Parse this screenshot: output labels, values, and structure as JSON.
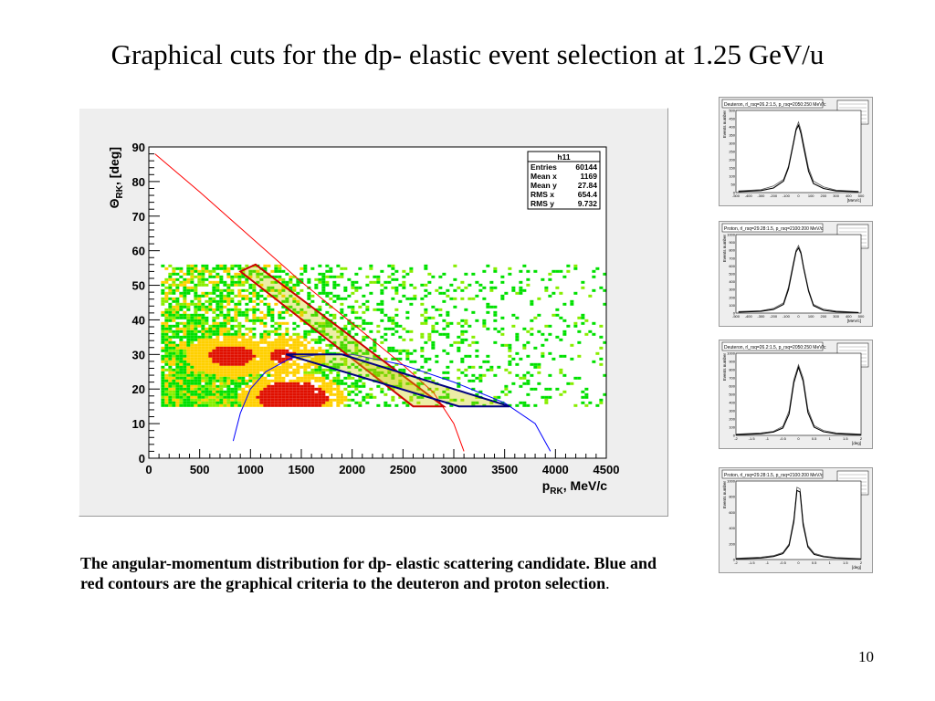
{
  "slide": {
    "title": "Graphical cuts for the dp- elastic event selection at 1.25 GeV/u",
    "caption": "The angular-momentum distribution for dp- elastic scattering candidate. Blue and red contours are the graphical criteria to the deuteron and proton selection",
    "caption_end": ".",
    "page_number": "10"
  },
  "chart_data": [
    {
      "type": "heatmap",
      "title": "",
      "xlabel_main": "p",
      "xlabel_sub": "RK",
      "xlabel_unit": ", MeV/c",
      "ylabel_main": "Θ",
      "ylabel_sub": "RK",
      "ylabel_unit": ", [deg]",
      "xlim": [
        0,
        4500
      ],
      "ylim": [
        0,
        90
      ],
      "x_ticks": [
        0,
        500,
        1000,
        1500,
        2000,
        2500,
        3000,
        3500,
        4000,
        4500
      ],
      "y_ticks": [
        0,
        10,
        20,
        30,
        40,
        50,
        60,
        70,
        80,
        90
      ],
      "colors": {
        "low": "#00e000",
        "mid": "#ffd000",
        "high": "#e01000",
        "frame": "#000000"
      },
      "density_model": {
        "region": {
          "x_min": 120,
          "x_max": 4500,
          "y_min": 15,
          "y_max": 56
        },
        "hot_spots": [
          {
            "x": 1400,
            "y": 18,
            "weight": 1.0
          },
          {
            "x": 800,
            "y": 30,
            "weight": 0.7
          },
          {
            "x": 1300,
            "y": 30,
            "weight": 0.6
          }
        ]
      },
      "stats_box": {
        "name": "h11",
        "rows": [
          {
            "label": "Entries",
            "value": "60144"
          },
          {
            "label": "Mean x",
            "value": "1169"
          },
          {
            "label": "Mean y",
            "value": "27.84"
          },
          {
            "label": "RMS x",
            "value": "654.4"
          },
          {
            "label": "RMS y",
            "value": "9.732"
          }
        ]
      },
      "kinematic_curves": [
        {
          "name": "proton",
          "color": "#ff0000",
          "points": [
            [
              60,
              88
            ],
            [
              500,
              77
            ],
            [
              1000,
              64
            ],
            [
              1500,
              51
            ],
            [
              2000,
              39
            ],
            [
              2500,
              27
            ],
            [
              2800,
              19
            ],
            [
              3000,
              10
            ],
            [
              3100,
              2
            ]
          ]
        },
        {
          "name": "deuteron",
          "color": "#0000ff",
          "points": [
            [
              830,
              5
            ],
            [
              900,
              13
            ],
            [
              1000,
              20
            ],
            [
              1150,
              25
            ],
            [
              1400,
              29
            ],
            [
              1700,
              30
            ],
            [
              2000,
              30
            ],
            [
              2500,
              27
            ],
            [
              3000,
              22
            ],
            [
              3500,
              16
            ],
            [
              3800,
              10
            ],
            [
              3950,
              2
            ]
          ]
        }
      ],
      "cut_contours": [
        {
          "name": "proton cut",
          "color": "#cc0000",
          "fill": "#cccc00",
          "points": [
            [
              900,
              54
            ],
            [
              1050,
              56
            ],
            [
              2900,
              15
            ],
            [
              2600,
              15
            ]
          ]
        },
        {
          "name": "deuteron cut",
          "color": "#000080",
          "fill": "#cccc00",
          "points": [
            [
              1350,
              30
            ],
            [
              1900,
              30
            ],
            [
              3550,
              15
            ],
            [
              3050,
              15
            ]
          ]
        }
      ]
    },
    {
      "type": "line",
      "header": "Deuteron, rl_rsq=26.2:1.5, p_rsq=2050:250 MeV/c",
      "xlim": [
        -500,
        500
      ],
      "ylim": [
        0,
        500
      ],
      "x_ticks": [
        "-500",
        "-400",
        "-300",
        "-200",
        "-100",
        "0",
        "100",
        "200",
        "300",
        "400",
        "500"
      ],
      "y_ticks": [
        "0",
        "50",
        "100",
        "150",
        "200",
        "250",
        "300",
        "350",
        "400",
        "450",
        "500"
      ],
      "xlabel": "[MeV/c]",
      "ylabel": "Events number",
      "series": [
        {
          "x": [
            -480,
            -300,
            -200,
            -120,
            -80,
            -40,
            -20,
            0,
            20,
            40,
            80,
            120,
            200,
            300,
            480
          ],
          "values": [
            10,
            18,
            40,
            80,
            160,
            310,
            390,
            430,
            380,
            300,
            150,
            70,
            35,
            15,
            8
          ]
        },
        {
          "x": [
            -480,
            -300,
            -200,
            -120,
            -80,
            -40,
            -20,
            0,
            20,
            40,
            80,
            120,
            200,
            300,
            480
          ],
          "values": [
            6,
            12,
            28,
            70,
            150,
            300,
            380,
            410,
            360,
            280,
            130,
            55,
            25,
            10,
            5
          ]
        }
      ]
    },
    {
      "type": "line",
      "header": "Proton, rl_rsq=29.28:1.5, p_rsq=2100:200 MeV/c",
      "xlim": [
        -500,
        500
      ],
      "ylim": [
        0,
        1000
      ],
      "x_ticks": [
        "-500",
        "-400",
        "-300",
        "-200",
        "-100",
        "0",
        "100",
        "200",
        "300",
        "400",
        "500"
      ],
      "y_ticks": [
        "0",
        "100",
        "200",
        "300",
        "400",
        "500",
        "600",
        "700",
        "800",
        "900",
        "1000"
      ],
      "xlabel": "[MeV/c]",
      "ylabel": "Events number",
      "series": [
        {
          "x": [
            -480,
            -300,
            -200,
            -120,
            -80,
            -40,
            -20,
            0,
            20,
            40,
            80,
            120,
            200,
            300,
            480
          ],
          "values": [
            20,
            30,
            60,
            130,
            330,
            650,
            800,
            860,
            780,
            600,
            300,
            110,
            50,
            25,
            10
          ]
        },
        {
          "x": [
            -480,
            -300,
            -200,
            -120,
            -80,
            -40,
            -20,
            0,
            20,
            40,
            80,
            120,
            200,
            300,
            480
          ],
          "values": [
            12,
            22,
            45,
            110,
            300,
            620,
            780,
            830,
            760,
            580,
            280,
            95,
            35,
            15,
            6
          ]
        }
      ]
    },
    {
      "type": "line",
      "header": "Deuteron, rl_rsq=26.2:1.5, p_rsq=2050:250 MeV/c",
      "xlim": [
        -2,
        2
      ],
      "ylim": [
        0,
        1000
      ],
      "x_ticks": [
        "-2",
        "-1.5",
        "-1",
        "-0.5",
        "0",
        "0.5",
        "1",
        "1.5",
        "2"
      ],
      "y_ticks": [
        "0",
        "100",
        "200",
        "300",
        "400",
        "500",
        "600",
        "700",
        "800",
        "900",
        "1000"
      ],
      "xlabel": "[deg]",
      "ylabel": "Events number",
      "series": [
        {
          "x": [
            -2,
            -1.2,
            -0.8,
            -0.5,
            -0.3,
            -0.15,
            0,
            0.15,
            0.3,
            0.5,
            0.8,
            1.2,
            2
          ],
          "values": [
            15,
            30,
            50,
            110,
            300,
            680,
            860,
            700,
            320,
            120,
            60,
            30,
            15
          ]
        },
        {
          "x": [
            -2,
            -1.2,
            -0.8,
            -0.5,
            -0.3,
            -0.15,
            0,
            0.15,
            0.3,
            0.5,
            0.8,
            1.2,
            2
          ],
          "values": [
            8,
            20,
            40,
            90,
            260,
            640,
            830,
            660,
            280,
            100,
            45,
            20,
            8
          ]
        }
      ]
    },
    {
      "type": "line",
      "header": "Proton, rl_rsq=29.28:1.5, p_rsq=2100:200 MeV/c",
      "xlim": [
        -2,
        2
      ],
      "ylim": [
        0,
        1000
      ],
      "x_ticks": [
        "-2",
        "-1.5",
        "-1",
        "-0.5",
        "0",
        "0.5",
        "1",
        "1.5",
        "2"
      ],
      "y_ticks": [
        "0",
        "200",
        "400",
        "600",
        "800",
        "1000"
      ],
      "xlabel": "[deg]",
      "ylabel": "Events number",
      "series": [
        {
          "x": [
            -2,
            -1.2,
            -0.8,
            -0.5,
            -0.3,
            -0.15,
            -0.05,
            0.05,
            0.15,
            0.3,
            0.5,
            0.8,
            1.2,
            2
          ],
          "values": [
            15,
            30,
            50,
            90,
            200,
            520,
            920,
            900,
            480,
            180,
            80,
            45,
            25,
            12
          ]
        },
        {
          "x": [
            -2,
            -1.2,
            -0.8,
            -0.5,
            -0.3,
            -0.15,
            -0.05,
            0.05,
            0.15,
            0.3,
            0.5,
            0.8,
            1.2,
            2
          ],
          "values": [
            8,
            20,
            38,
            75,
            180,
            480,
            880,
            860,
            440,
            160,
            65,
            35,
            18,
            6
          ]
        }
      ]
    }
  ]
}
